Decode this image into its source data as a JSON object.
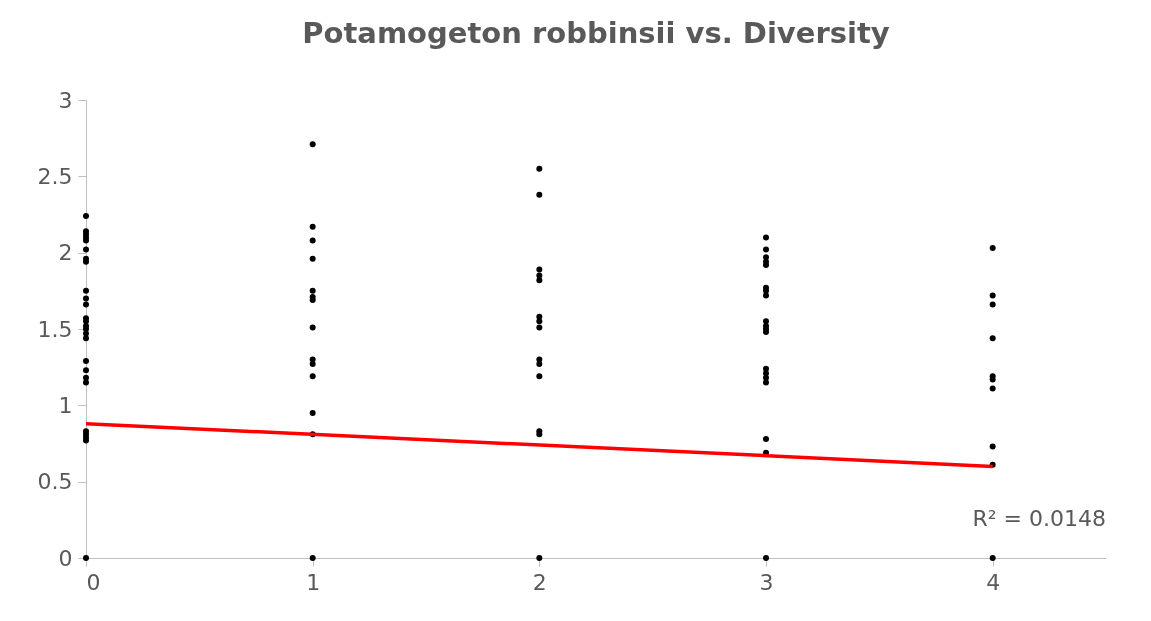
{
  "chart_data": {
    "type": "scatter",
    "title": "Potamogeton robbinsii vs. Diversity",
    "xlim": [
      0,
      4.5
    ],
    "xticks": [
      0,
      1,
      2,
      3,
      4
    ],
    "ylim": [
      0,
      3
    ],
    "yticks": [
      0,
      0.5,
      1,
      1.5,
      2,
      2.5,
      3
    ],
    "grid": false,
    "annotations": [
      "R² = 0.0148"
    ],
    "series": [
      {
        "marker": "circle",
        "color": "#000000",
        "x": [
          0,
          0,
          0,
          0,
          0,
          0,
          0,
          0,
          0,
          0,
          0,
          0,
          0,
          0,
          0,
          0,
          0,
          0,
          0,
          0,
          0,
          0,
          0,
          0,
          0,
          0,
          1,
          1,
          1,
          1,
          1,
          1,
          1,
          1,
          1,
          1,
          1,
          1,
          1,
          1,
          2,
          2,
          2,
          2,
          2,
          2,
          2,
          2,
          2,
          2,
          2,
          2,
          2,
          2,
          3,
          3,
          3,
          3,
          3,
          3,
          3,
          3,
          3,
          3,
          3,
          3,
          3,
          3,
          3,
          3,
          3,
          3,
          3,
          4,
          4,
          4,
          4,
          4,
          4,
          4,
          4,
          4,
          4
        ],
        "values": [
          2.24,
          2.14,
          2.12,
          2.1,
          2.08,
          2.02,
          1.96,
          1.94,
          1.75,
          1.7,
          1.66,
          1.57,
          1.55,
          1.52,
          1.5,
          1.47,
          1.44,
          1.29,
          1.23,
          1.18,
          1.15,
          0.83,
          0.81,
          0.79,
          0.77,
          0,
          2.71,
          2.17,
          2.08,
          1.96,
          1.75,
          1.71,
          1.69,
          1.51,
          1.3,
          1.27,
          1.19,
          0.95,
          0.81,
          0,
          2.55,
          2.38,
          1.89,
          1.85,
          1.82,
          1.58,
          1.55,
          1.51,
          1.3,
          1.27,
          1.19,
          0.83,
          0.81,
          0,
          2.1,
          2.02,
          1.97,
          1.94,
          1.92,
          1.77,
          1.75,
          1.72,
          1.55,
          1.52,
          1.5,
          1.48,
          1.24,
          1.21,
          1.18,
          1.15,
          0.78,
          0.69,
          0,
          2.03,
          1.72,
          1.66,
          1.44,
          1.19,
          1.17,
          1.11,
          0.73,
          0.61,
          0
        ]
      },
      {
        "type": "line",
        "color": "#ff0000",
        "x": [
          0,
          4
        ],
        "values": [
          0.88,
          0.6
        ]
      }
    ]
  }
}
